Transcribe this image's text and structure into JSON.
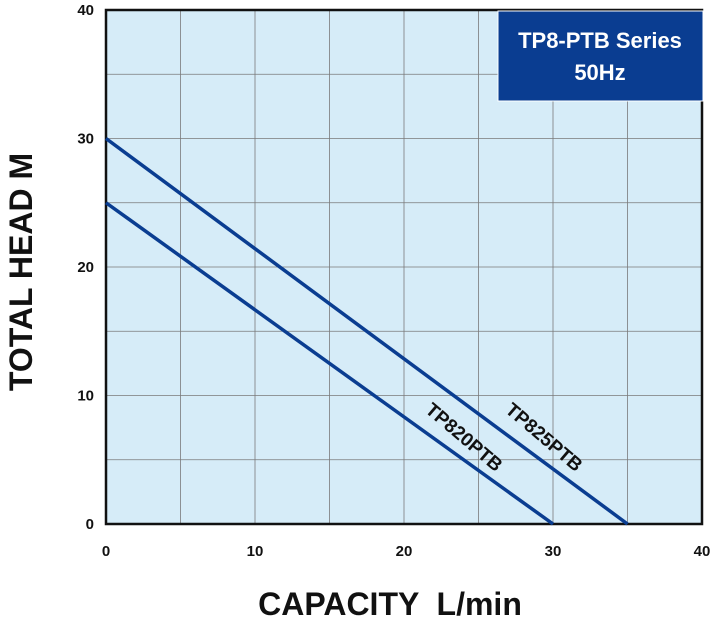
{
  "chart_data": {
    "type": "line",
    "title_box": {
      "line1": "TP8-PTB Series",
      "line2": "50Hz",
      "fill": "#0a3d91"
    },
    "xlabel": "CAPACITY  L/min",
    "ylabel": "TOTAL HEAD M",
    "xlim": [
      0,
      40
    ],
    "ylim": [
      0,
      40
    ],
    "x_ticks": [
      "0",
      "10",
      "20",
      "30",
      "40"
    ],
    "y_ticks": [
      "0",
      "10",
      "20",
      "30",
      "40"
    ],
    "grid": true,
    "plot_background": "#d6ecf8",
    "line_color": "#0a3d91",
    "series": [
      {
        "name": "TP825PTB",
        "x": [
          0,
          35
        ],
        "y": [
          30,
          0
        ]
      },
      {
        "name": "TP820PTB",
        "x": [
          0,
          30
        ],
        "y": [
          25,
          0
        ]
      }
    ]
  }
}
